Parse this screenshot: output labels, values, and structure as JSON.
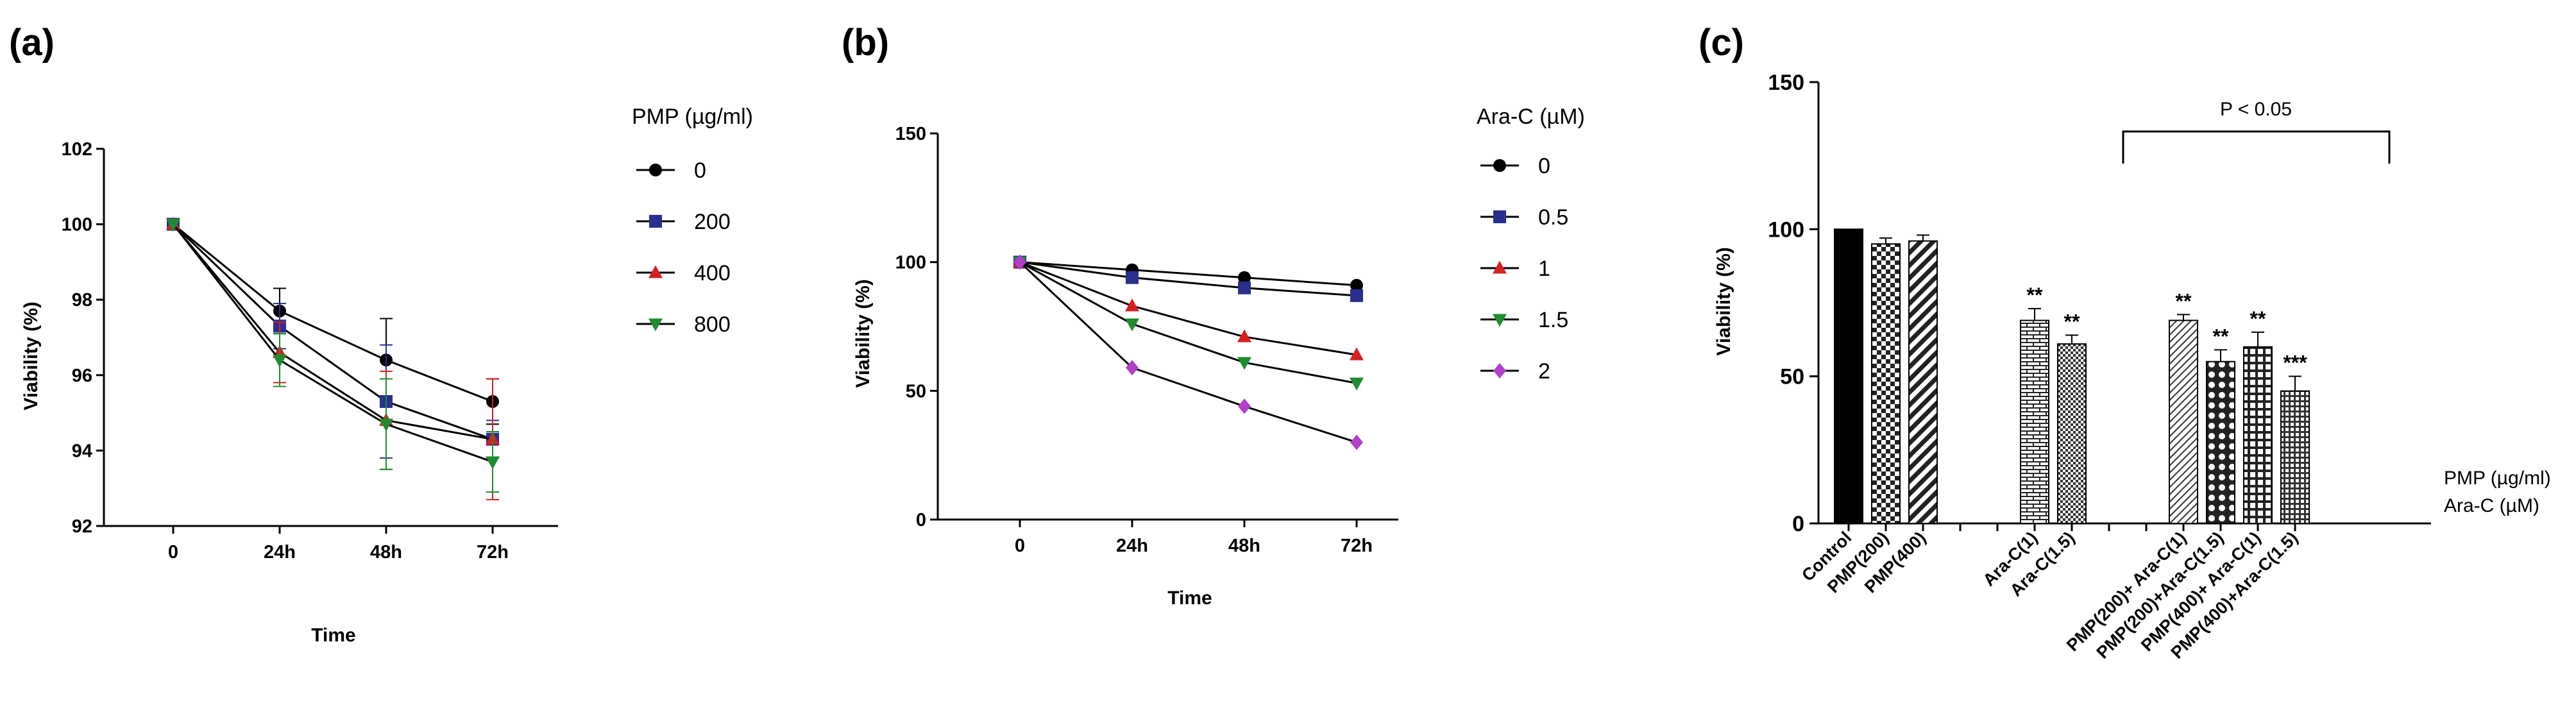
{
  "chart_data": [
    {
      "panel": "(a)",
      "type": "line",
      "title": "",
      "xlabel": "Time",
      "ylabel": "Viability (%)",
      "categories": [
        "0",
        "24h",
        "48h",
        "72h"
      ],
      "ylim": [
        92,
        102
      ],
      "yticks": [
        "92",
        "94",
        "96",
        "98",
        "100",
        "102"
      ],
      "legend_title": "PMP (µg/ml)",
      "series": [
        {
          "name": "0",
          "marker": "circle",
          "color": "#000000",
          "values": [
            100,
            97.7,
            96.4,
            95.3
          ],
          "errors": [
            0,
            0.6,
            1.1,
            0.6
          ]
        },
        {
          "name": "200",
          "marker": "square",
          "color": "#2a2f8f",
          "values": [
            100,
            97.3,
            95.3,
            94.3
          ],
          "errors": [
            0,
            0.6,
            1.5,
            0.5
          ]
        },
        {
          "name": "400",
          "marker": "triangle",
          "color": "#d62020",
          "values": [
            100,
            96.6,
            94.8,
            94.3
          ],
          "errors": [
            0,
            0.8,
            1.3,
            1.6
          ]
        },
        {
          "name": "800",
          "marker": "triangle-down",
          "color": "#1e8c30",
          "values": [
            100,
            96.4,
            94.7,
            93.7
          ],
          "errors": [
            0,
            0.7,
            1.2,
            0.8
          ]
        }
      ]
    },
    {
      "panel": "(b)",
      "type": "line",
      "title": "",
      "xlabel": "Time",
      "ylabel": "Viability (%)",
      "categories": [
        "0",
        "24h",
        "48h",
        "72h"
      ],
      "ylim": [
        0,
        150
      ],
      "yticks": [
        "0",
        "50",
        "100",
        "150"
      ],
      "legend_title": "Ara-C (µM)",
      "series": [
        {
          "name": "0",
          "marker": "circle",
          "color": "#000000",
          "values": [
            100,
            97,
            94,
            91
          ]
        },
        {
          "name": "0.5",
          "marker": "square",
          "color": "#2a2f8f",
          "values": [
            100,
            94,
            90,
            87
          ]
        },
        {
          "name": "1",
          "marker": "triangle",
          "color": "#d62020",
          "values": [
            100,
            83,
            71,
            64
          ]
        },
        {
          "name": "1.5",
          "marker": "triangle-down",
          "color": "#1e8c30",
          "values": [
            100,
            76,
            61,
            53
          ]
        },
        {
          "name": "2",
          "marker": "diamond",
          "color": "#b040c8",
          "values": [
            100,
            59,
            44,
            30
          ]
        }
      ]
    },
    {
      "panel": "(c)",
      "type": "bar",
      "title": "",
      "xlabel": "",
      "ylabel": "Viability (%)",
      "ylim": [
        0,
        150
      ],
      "yticks": [
        "0",
        "50",
        "100",
        "150"
      ],
      "categories": [
        "Control",
        "PMP(200)",
        "PMP(400)",
        "Ara-C(1)",
        "Ara-C(1.5)",
        "PMP(200)+ Ara-C(1)",
        "PMP(200)+Ara-C(1.5)",
        "PMP(400)+ Ara-C(1)",
        "PMP(400)+Ara-C(1.5)"
      ],
      "slot_index": [
        0,
        1,
        2,
        5,
        6,
        9,
        10,
        11,
        12
      ],
      "values": [
        100,
        95,
        96,
        69,
        61,
        69,
        55,
        60,
        45
      ],
      "errors": [
        0,
        2,
        2,
        4,
        3,
        2,
        4,
        5,
        5
      ],
      "patterns": [
        "solid",
        "check",
        "diag",
        "brick",
        "fine-check",
        "hatch",
        "dots",
        "grid",
        "fine-grid"
      ],
      "significance": [
        "",
        "",
        "",
        "**",
        "**",
        "**",
        "**",
        "**",
        "***"
      ],
      "annotation": "P < 0.05",
      "side_labels": [
        "PMP (µg/ml)",
        "Ara-C (µM)"
      ]
    }
  ]
}
